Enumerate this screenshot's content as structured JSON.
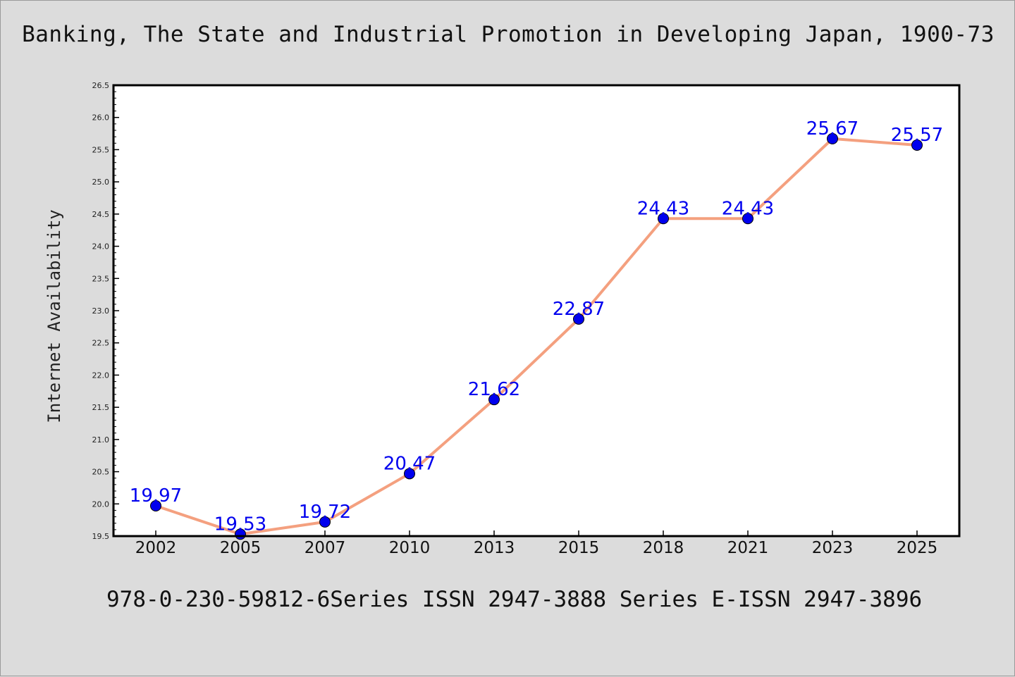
{
  "chart_data": {
    "type": "line",
    "title": "Banking, The State and Industrial Promotion in Developing Japan, 1900-73",
    "xlabel": "",
    "ylabel": "Internet Availability",
    "footer": "978-0-230-59812-6Series ISSN 2947-3888 Series E-ISSN 2947-3896",
    "categories": [
      "2002",
      "2005",
      "2007",
      "2010",
      "2013",
      "2015",
      "2018",
      "2021",
      "2023",
      "2025"
    ],
    "series": [
      {
        "values": [
          19.97,
          19.53,
          19.72,
          20.47,
          21.62,
          22.87,
          24.43,
          24.43,
          25.67,
          25.57
        ],
        "labels": [
          "19.97",
          "19.53",
          "19.72",
          "20.47",
          "21.62",
          "22.87",
          "24.43",
          "24.43",
          "25.67",
          "25.57"
        ],
        "line_color": "#f4a07f",
        "marker_color": "#0000ee",
        "label_color": "#0000ee"
      }
    ],
    "ylim": [
      19.5,
      26.5
    ],
    "yticks": [
      "19.5",
      "20.0",
      "20.5",
      "21.0",
      "21.5",
      "22.0",
      "22.5",
      "23.0",
      "23.5",
      "24.0",
      "24.5",
      "25.0",
      "25.5",
      "26.0",
      "26.5"
    ],
    "grid": false,
    "legend": "none",
    "background": "#dcdcdc",
    "plot_background": "#ffffff"
  }
}
